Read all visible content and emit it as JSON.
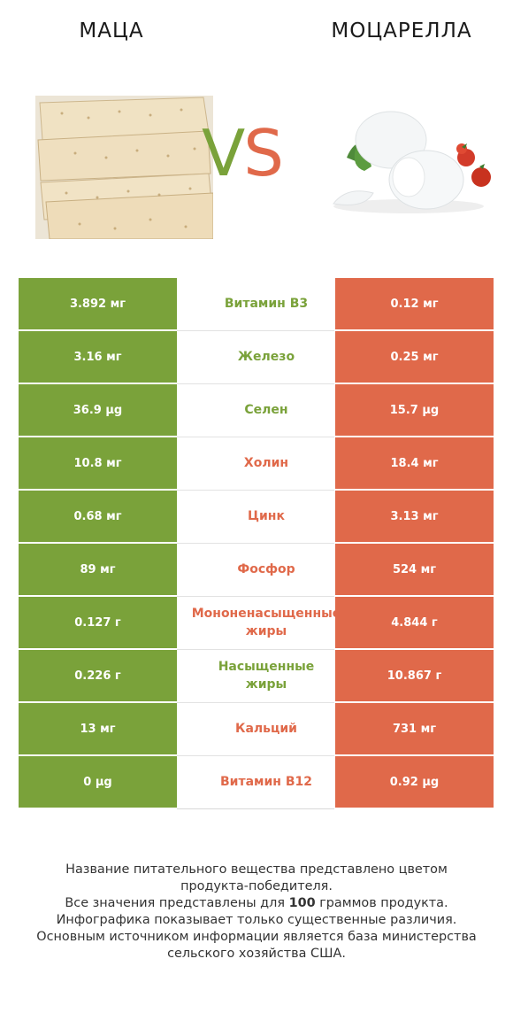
{
  "header": {
    "left_title": "МАЦА",
    "right_title": "МОЦАРЕЛЛА",
    "vs_v": "V",
    "vs_s": "S"
  },
  "colors": {
    "left_winner": "#7aa23a",
    "right_winner": "#e0694a"
  },
  "rows": [
    {
      "left": "3.892 мг",
      "label": "Витамин B3",
      "right": "0.12 мг",
      "winner": "left"
    },
    {
      "left": "3.16 мг",
      "label": "Железо",
      "right": "0.25 мг",
      "winner": "left"
    },
    {
      "left": "36.9 µg",
      "label": "Селен",
      "right": "15.7 µg",
      "winner": "left"
    },
    {
      "left": "10.8 мг",
      "label": "Холин",
      "right": "18.4 мг",
      "winner": "right"
    },
    {
      "left": "0.68 мг",
      "label": "Цинк",
      "right": "3.13 мг",
      "winner": "right"
    },
    {
      "left": "89 мг",
      "label": "Фосфор",
      "right": "524 мг",
      "winner": "right"
    },
    {
      "left": "0.127 г",
      "label": "Мононенасыщенные\nжиры",
      "right": "4.844 г",
      "winner": "right"
    },
    {
      "left": "0.226 г",
      "label": "Насыщенные\nжиры",
      "right": "10.867 г",
      "winner": "left"
    },
    {
      "left": "13 мг",
      "label": "Кальций",
      "right": "731 мг",
      "winner": "right"
    },
    {
      "left": "0 µg",
      "label": "Витамин B12",
      "right": "0.92 µg",
      "winner": "right"
    }
  ],
  "footer": {
    "line1": "Название питательного вещества представлено цветом",
    "line2": "продукта-победителя.",
    "line3_pre": "Все значения представлены для ",
    "line3_bold": "100",
    "line3_post": " граммов продукта.",
    "line4": "Инфографика показывает только существенные различия.",
    "line5": "Основным источником информации является база министерства",
    "line6": "сельского хозяйства США."
  }
}
